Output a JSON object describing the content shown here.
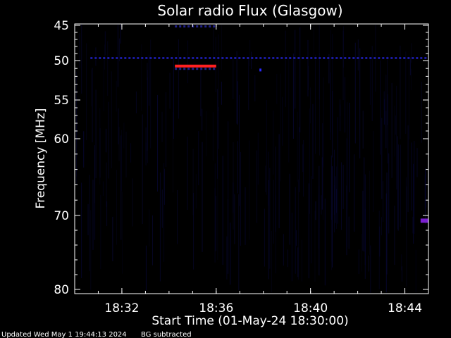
{
  "chart_data": {
    "type": "heatmap",
    "title": "Solar radio Flux (Glasgow)",
    "xlabel": "Start Time (01-May-24 18:30:00)",
    "ylabel": "Frequency [MHz]",
    "x_unit": "time",
    "xlim": [
      "18:30:00",
      "18:45:00"
    ],
    "x_ticks": [
      "18:32",
      "18:36",
      "18:40",
      "18:44"
    ],
    "ylim": [
      45,
      80
    ],
    "y_ticks": [
      45,
      50,
      55,
      60,
      70,
      80
    ],
    "y_scale": "nonlinear (upper part expanded)",
    "background_color": "#000000",
    "grid": false,
    "features": [
      {
        "kind": "horizontal-band",
        "time_start": "18:34:15",
        "time_end": "18:36:00",
        "freq_mhz": 50.7,
        "color": "#ff2020"
      },
      {
        "kind": "blob",
        "time_start": "18:44:40",
        "time_end": "18:45:00",
        "freq_mhz": 70.7,
        "color": "#7a1fd0"
      },
      {
        "kind": "faint-line",
        "time_start": "18:30:40",
        "time_end": "18:45:00",
        "freq_mhz": 49.6,
        "color": "#1a1aa0"
      },
      {
        "kind": "faint-line",
        "time_start": "18:34:15",
        "time_end": "18:36:00",
        "freq_mhz": 51.0,
        "color": "#20208a"
      },
      {
        "kind": "faint-line",
        "time_start": "18:34:15",
        "time_end": "18:36:00",
        "freq_mhz": 45.1,
        "color": "#20208a"
      },
      {
        "kind": "dot",
        "time_start": "18:37:50",
        "time_end": "18:37:55",
        "freq_mhz": 51.2,
        "color": "#2a2aff"
      }
    ]
  },
  "footer": {
    "updated_text": "Updated Wed May  1 19:44:13 2024",
    "note": "BG subtracted"
  },
  "colors": {
    "axis": "#ffffff",
    "noise": "#06062a"
  }
}
